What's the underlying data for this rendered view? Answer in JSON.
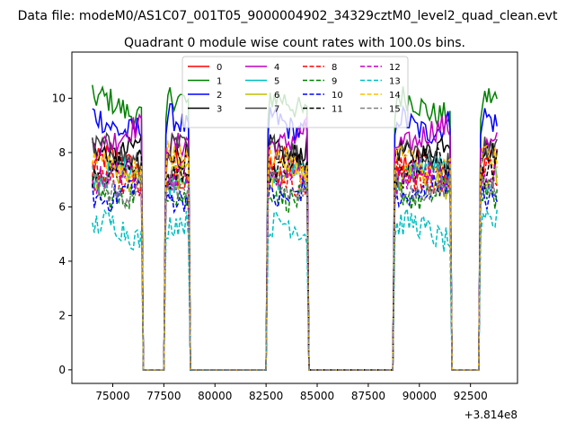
{
  "chart_data": {
    "type": "line",
    "suptitle": "Data file: modeM0/AS1C07_001T05_9000004902_34329cztM0_level2_quad_clean.evt",
    "title": "Quadrant 0 module wise count rates with 100.0s bins.",
    "xlabel": "",
    "ylabel": "",
    "x_offset_label": "+3.814e8",
    "xlim": [
      73000,
      94800
    ],
    "ylim": [
      -0.5,
      11.7
    ],
    "x_ticks": [
      75000,
      77500,
      80000,
      82500,
      85000,
      87500,
      90000,
      92500
    ],
    "y_ticks": [
      0,
      2,
      4,
      6,
      8,
      10
    ],
    "x_tick_labels": [
      "75000",
      "77500",
      "80000",
      "82500",
      "85000",
      "87500",
      "90000",
      "92500"
    ],
    "y_tick_labels": [
      "0",
      "2",
      "4",
      "6",
      "8",
      "10"
    ],
    "legend_position": "upper-center",
    "legend_ncol": 4,
    "segments": [
      {
        "start": 74000,
        "end": 76400
      },
      {
        "start": 77600,
        "end": 78700
      },
      {
        "start": 82600,
        "end": 84500
      },
      {
        "start": 88800,
        "end": 91500
      },
      {
        "start": 93000,
        "end": 93800
      }
    ],
    "bin_width": 100,
    "series": [
      {
        "name": "0",
        "color": "#ff0000",
        "dash": "solid",
        "level": 7.5
      },
      {
        "name": "1",
        "color": "#008000",
        "dash": "solid",
        "level": 9.7
      },
      {
        "name": "2",
        "color": "#0000ff",
        "dash": "solid",
        "level": 9.1
      },
      {
        "name": "3",
        "color": "#000000",
        "dash": "solid",
        "level": 8.2
      },
      {
        "name": "4",
        "color": "#bf00bf",
        "dash": "solid",
        "level": 8.6
      },
      {
        "name": "5",
        "color": "#00bfbf",
        "dash": "solid",
        "level": 7.2
      },
      {
        "name": "6",
        "color": "#bfbf00",
        "dash": "solid",
        "level": 6.9
      },
      {
        "name": "7",
        "color": "#404040",
        "dash": "solid",
        "level": 7.9
      },
      {
        "name": "8",
        "color": "#ff0000",
        "dash": "dashed",
        "level": 7.1
      },
      {
        "name": "9",
        "color": "#008000",
        "dash": "dashed",
        "level": 6.6
      },
      {
        "name": "10",
        "color": "#0000ff",
        "dash": "dashed",
        "level": 6.6
      },
      {
        "name": "11",
        "color": "#000000",
        "dash": "dashed",
        "level": 7.4
      },
      {
        "name": "12",
        "color": "#bf00bf",
        "dash": "dashed",
        "level": 7.0
      },
      {
        "name": "13",
        "color": "#00bfbf",
        "dash": "dashed",
        "level": 5.1
      },
      {
        "name": "14",
        "color": "#ffbf00",
        "dash": "dashed",
        "level": 7.6
      },
      {
        "name": "15",
        "color": "#808080",
        "dash": "dashed",
        "level": 6.8
      }
    ]
  }
}
